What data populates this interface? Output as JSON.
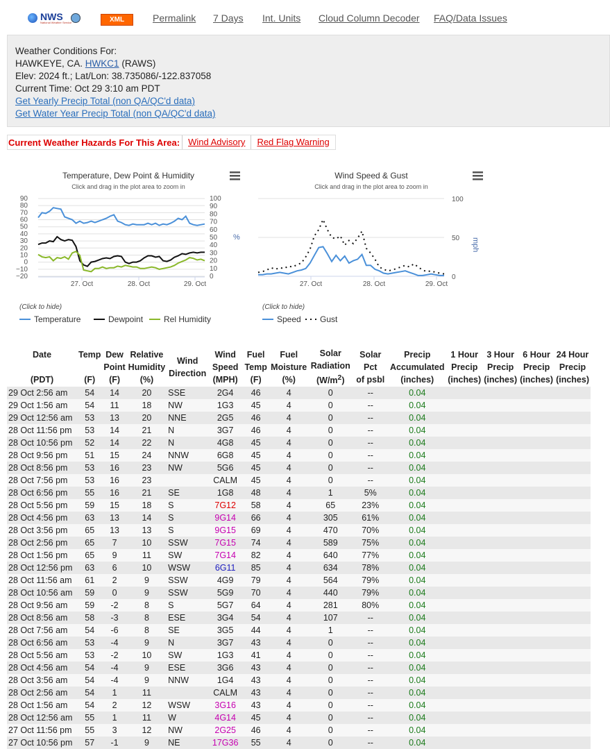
{
  "nav": {
    "logo_text": "NWS",
    "logo_sub": "National Weather Service",
    "xml_label": "XML",
    "links": [
      "Permalink",
      "7 Days",
      "Int. Units",
      "Cloud Column Decoder",
      "FAQ/Data Issues"
    ]
  },
  "station": {
    "heading": "Weather Conditions For:",
    "name_prefix": "HAWKEYE, CA.",
    "id_link": "HWKC1",
    "network": "(RAWS)",
    "elev_line": "Elev: 2024 ft.; Lat/Lon: 38.735086/-122.837058",
    "time_line": "Current Time: Oct 29 3:10 am PDT",
    "yearly_link": "Get Yearly Precip Total (non QA/QC'd data)",
    "water_link": "Get Water Year Precip Total (non QA/QC'd data)"
  },
  "hazards": {
    "label": "Current Weather Hazards For This Area:",
    "items": [
      "Wind Advisory",
      "Red Flag Warning"
    ]
  },
  "chart_data": [
    {
      "type": "line",
      "title": "Temperature, Dew Point & Humidity",
      "subtitle": "Click and drag in the plot area to zoom in",
      "x_ticks": [
        "27. Oct",
        "28. Oct",
        "29. Oct"
      ],
      "y_left_ticks": [
        "90",
        "80",
        "70",
        "60",
        "50",
        "40",
        "30",
        "20",
        "10",
        "0",
        "−10",
        "−20"
      ],
      "y_right_ticks": [
        "100",
        "90",
        "80",
        "70",
        "60",
        "50",
        "40",
        "30",
        "20",
        "10",
        "0"
      ],
      "y_right_label": "%",
      "ylim_left": [
        -20,
        90
      ],
      "ylim_right": [
        0,
        100
      ],
      "legend_note": "(Click to hide)",
      "series": [
        {
          "name": "Temperature",
          "axis": "left",
          "color": "#4a90d9",
          "values": [
            63,
            70,
            69,
            72,
            77,
            76,
            75,
            64,
            62,
            60,
            55,
            58,
            55,
            56,
            58,
            56,
            58,
            60,
            62,
            65,
            67,
            58,
            56,
            53,
            52,
            54,
            53,
            53,
            53,
            55,
            53,
            55,
            52,
            54,
            53,
            55,
            58,
            62,
            60,
            65,
            55,
            53,
            52,
            53,
            54
          ]
        },
        {
          "name": "Dewpoint",
          "axis": "left",
          "color": "#111111",
          "values": [
            25,
            27,
            27,
            30,
            29,
            36,
            32,
            30,
            32,
            31,
            22,
            2,
            -4,
            -6,
            0,
            1,
            3,
            5,
            6,
            5,
            8,
            9,
            8,
            0,
            -2,
            0,
            0,
            2,
            6,
            9,
            9,
            7,
            8,
            2,
            1,
            3,
            7,
            9,
            12,
            11,
            13,
            14,
            13,
            14,
            14
          ]
        },
        {
          "name": "Rel Humidity",
          "axis": "right",
          "color": "#8ab82a",
          "values": [
            28,
            25,
            24,
            25,
            20,
            24,
            23,
            25,
            22,
            30,
            32,
            27,
            8,
            7,
            6,
            10,
            10,
            12,
            10,
            11,
            11,
            13,
            12,
            14,
            13,
            12,
            12,
            10,
            10,
            11,
            12,
            11,
            9,
            10,
            11,
            12,
            14,
            17,
            19,
            21,
            24,
            23,
            21,
            22,
            20
          ]
        }
      ]
    },
    {
      "type": "line",
      "title": "Wind Speed & Gust",
      "subtitle": "Click and drag in the plot area to zoom in",
      "x_ticks": [
        "27. Oct",
        "28. Oct",
        "29. Oct"
      ],
      "y_right_ticks": [
        "100",
        "50",
        "0"
      ],
      "y_right_label": "mph",
      "ylim": [
        0,
        100
      ],
      "legend_note": "(Click to hide)",
      "series": [
        {
          "name": "Speed",
          "color": "#4a90d9",
          "values": [
            2,
            2,
            3,
            3,
            4,
            5,
            4,
            3,
            5,
            7,
            8,
            10,
            17,
            27,
            37,
            38,
            29,
            19,
            27,
            20,
            26,
            17,
            20,
            22,
            28,
            14,
            14,
            9,
            7,
            4,
            3,
            4,
            5,
            6,
            7,
            5,
            3,
            1,
            1,
            2,
            3,
            2,
            1,
            1
          ]
        },
        {
          "name": "Gust",
          "color": "#111111",
          "values": [
            5,
            6,
            8,
            11,
            9,
            11,
            10,
            13,
            12,
            15,
            17,
            25,
            35,
            52,
            60,
            73,
            60,
            50,
            48,
            52,
            40,
            46,
            42,
            49,
            58,
            36,
            30,
            22,
            12,
            9,
            7,
            8,
            10,
            12,
            14,
            12,
            16,
            12,
            8,
            6,
            7,
            5,
            4,
            3
          ]
        }
      ]
    }
  ],
  "table": {
    "headers": [
      [
        "Date",
        "",
        "(PDT)"
      ],
      [
        "Temp",
        "",
        "(F)"
      ],
      [
        "Dew",
        "Point",
        "(F)"
      ],
      [
        "Relative",
        "Humidity",
        "(%)"
      ],
      [
        "Wind",
        "Direction",
        ""
      ],
      [
        "Wind",
        "Speed",
        "(MPH)"
      ],
      [
        "Fuel",
        "Temp",
        "(F)"
      ],
      [
        "Fuel",
        "Moisture",
        "(%)"
      ],
      [
        "Solar",
        "Radiation",
        "(W/m²)"
      ],
      [
        "Solar",
        "Pct",
        "of psbl"
      ],
      [
        "Precip",
        "Accumulated",
        "(inches)"
      ],
      [
        "1 Hour",
        "Precip",
        "(inches)"
      ],
      [
        "3 Hour",
        "Precip",
        "(inches)"
      ],
      [
        "6 Hour",
        "Precip",
        "(inches)"
      ],
      [
        "24 Hour",
        "Precip",
        "(inches)"
      ]
    ],
    "rows": [
      {
        "date": "29 Oct 2:56 am",
        "temp": "54",
        "dew": "14",
        "rh": "20",
        "dir": "SSE",
        "ws": "2",
        "wg": "4",
        "gc": "n",
        "ft": "46",
        "fm": "4",
        "sr": "0",
        "sp": "--",
        "pa": "0.04"
      },
      {
        "date": "29 Oct 1:56 am",
        "temp": "54",
        "dew": "11",
        "rh": "18",
        "dir": "NW",
        "ws": "1",
        "wg": "3",
        "gc": "n",
        "ft": "45",
        "fm": "4",
        "sr": "0",
        "sp": "--",
        "pa": "0.04"
      },
      {
        "date": "29 Oct 12:56 am",
        "temp": "53",
        "dew": "13",
        "rh": "20",
        "dir": "NNE",
        "ws": "2",
        "wg": "5",
        "gc": "n",
        "ft": "46",
        "fm": "4",
        "sr": "0",
        "sp": "--",
        "pa": "0.04"
      },
      {
        "date": "28 Oct 11:56 pm",
        "temp": "53",
        "dew": "14",
        "rh": "21",
        "dir": "N",
        "ws": "3",
        "wg": "7",
        "gc": "n",
        "ft": "46",
        "fm": "4",
        "sr": "0",
        "sp": "--",
        "pa": "0.04"
      },
      {
        "date": "28 Oct 10:56 pm",
        "temp": "52",
        "dew": "14",
        "rh": "22",
        "dir": "N",
        "ws": "4",
        "wg": "8",
        "gc": "n",
        "ft": "45",
        "fm": "4",
        "sr": "0",
        "sp": "--",
        "pa": "0.04"
      },
      {
        "date": "28 Oct 9:56 pm",
        "temp": "51",
        "dew": "15",
        "rh": "24",
        "dir": "NNW",
        "ws": "6",
        "wg": "8",
        "gc": "n",
        "ft": "45",
        "fm": "4",
        "sr": "0",
        "sp": "--",
        "pa": "0.04"
      },
      {
        "date": "28 Oct 8:56 pm",
        "temp": "53",
        "dew": "16",
        "rh": "23",
        "dir": "NW",
        "ws": "5",
        "wg": "6",
        "gc": "n",
        "ft": "45",
        "fm": "4",
        "sr": "0",
        "sp": "--",
        "pa": "0.04"
      },
      {
        "date": "28 Oct 7:56 pm",
        "temp": "53",
        "dew": "16",
        "rh": "23",
        "dir": "",
        "ws": "CALM",
        "wg": "",
        "gc": "n",
        "ft": "45",
        "fm": "4",
        "sr": "0",
        "sp": "--",
        "pa": "0.04"
      },
      {
        "date": "28 Oct 6:56 pm",
        "temp": "55",
        "dew": "16",
        "rh": "21",
        "dir": "SE",
        "ws": "1",
        "wg": "8",
        "gc": "n",
        "ft": "48",
        "fm": "4",
        "sr": "1",
        "sp": "5%",
        "pa": "0.04"
      },
      {
        "date": "28 Oct 5:56 pm",
        "temp": "59",
        "dew": "15",
        "rh": "18",
        "dir": "S",
        "ws": "7",
        "wg": "12",
        "gc": "r",
        "ft": "58",
        "fm": "4",
        "sr": "65",
        "sp": "23%",
        "pa": "0.04"
      },
      {
        "date": "28 Oct 4:56 pm",
        "temp": "63",
        "dew": "13",
        "rh": "14",
        "dir": "S",
        "ws": "9",
        "wg": "14",
        "gc": "m",
        "ft": "66",
        "fm": "4",
        "sr": "305",
        "sp": "61%",
        "pa": "0.04"
      },
      {
        "date": "28 Oct 3:56 pm",
        "temp": "65",
        "dew": "13",
        "rh": "13",
        "dir": "S",
        "ws": "9",
        "wg": "15",
        "gc": "m",
        "ft": "69",
        "fm": "4",
        "sr": "470",
        "sp": "70%",
        "pa": "0.04"
      },
      {
        "date": "28 Oct 2:56 pm",
        "temp": "65",
        "dew": "7",
        "rh": "10",
        "dir": "SSW",
        "ws": "7",
        "wg": "15",
        "gc": "m",
        "ft": "74",
        "fm": "4",
        "sr": "589",
        "sp": "75%",
        "pa": "0.04"
      },
      {
        "date": "28 Oct 1:56 pm",
        "temp": "65",
        "dew": "9",
        "rh": "11",
        "dir": "SW",
        "ws": "7",
        "wg": "14",
        "gc": "m",
        "ft": "82",
        "fm": "4",
        "sr": "640",
        "sp": "77%",
        "pa": "0.04"
      },
      {
        "date": "28 Oct 12:56 pm",
        "temp": "63",
        "dew": "6",
        "rh": "10",
        "dir": "WSW",
        "ws": "6",
        "wg": "11",
        "gc": "b",
        "ft": "85",
        "fm": "4",
        "sr": "634",
        "sp": "78%",
        "pa": "0.04"
      },
      {
        "date": "28 Oct 11:56 am",
        "temp": "61",
        "dew": "2",
        "rh": "9",
        "dir": "SSW",
        "ws": "4",
        "wg": "9",
        "gc": "n",
        "ft": "79",
        "fm": "4",
        "sr": "564",
        "sp": "79%",
        "pa": "0.04"
      },
      {
        "date": "28 Oct 10:56 am",
        "temp": "59",
        "dew": "0",
        "rh": "9",
        "dir": "SSW",
        "ws": "5",
        "wg": "9",
        "gc": "n",
        "ft": "70",
        "fm": "4",
        "sr": "440",
        "sp": "79%",
        "pa": "0.04"
      },
      {
        "date": "28 Oct 9:56 am",
        "temp": "59",
        "dew": "-2",
        "rh": "8",
        "dir": "S",
        "ws": "5",
        "wg": "7",
        "gc": "n",
        "ft": "64",
        "fm": "4",
        "sr": "281",
        "sp": "80%",
        "pa": "0.04"
      },
      {
        "date": "28 Oct 8:56 am",
        "temp": "58",
        "dew": "-3",
        "rh": "8",
        "dir": "ESE",
        "ws": "3",
        "wg": "4",
        "gc": "n",
        "ft": "54",
        "fm": "4",
        "sr": "107",
        "sp": "--",
        "pa": "0.04"
      },
      {
        "date": "28 Oct 7:56 am",
        "temp": "54",
        "dew": "-6",
        "rh": "8",
        "dir": "SE",
        "ws": "3",
        "wg": "5",
        "gc": "n",
        "ft": "44",
        "fm": "4",
        "sr": "1",
        "sp": "--",
        "pa": "0.04"
      },
      {
        "date": "28 Oct 6:56 am",
        "temp": "53",
        "dew": "-4",
        "rh": "9",
        "dir": "N",
        "ws": "3",
        "wg": "7",
        "gc": "n",
        "ft": "43",
        "fm": "4",
        "sr": "0",
        "sp": "--",
        "pa": "0.04"
      },
      {
        "date": "28 Oct 5:56 am",
        "temp": "53",
        "dew": "-2",
        "rh": "10",
        "dir": "SW",
        "ws": "1",
        "wg": "3",
        "gc": "n",
        "ft": "41",
        "fm": "4",
        "sr": "0",
        "sp": "--",
        "pa": "0.04"
      },
      {
        "date": "28 Oct 4:56 am",
        "temp": "54",
        "dew": "-4",
        "rh": "9",
        "dir": "ESE",
        "ws": "3",
        "wg": "6",
        "gc": "n",
        "ft": "43",
        "fm": "4",
        "sr": "0",
        "sp": "--",
        "pa": "0.04"
      },
      {
        "date": "28 Oct 3:56 am",
        "temp": "54",
        "dew": "-4",
        "rh": "9",
        "dir": "NNW",
        "ws": "1",
        "wg": "4",
        "gc": "n",
        "ft": "43",
        "fm": "4",
        "sr": "0",
        "sp": "--",
        "pa": "0.04"
      },
      {
        "date": "28 Oct 2:56 am",
        "temp": "54",
        "dew": "1",
        "rh": "11",
        "dir": "",
        "ws": "CALM",
        "wg": "",
        "gc": "n",
        "ft": "43",
        "fm": "4",
        "sr": "0",
        "sp": "--",
        "pa": "0.04"
      },
      {
        "date": "28 Oct 1:56 am",
        "temp": "54",
        "dew": "2",
        "rh": "12",
        "dir": "WSW",
        "ws": "3",
        "wg": "16",
        "gc": "m",
        "ft": "43",
        "fm": "4",
        "sr": "0",
        "sp": "--",
        "pa": "0.04"
      },
      {
        "date": "28 Oct 12:56 am",
        "temp": "55",
        "dew": "1",
        "rh": "11",
        "dir": "W",
        "ws": "4",
        "wg": "14",
        "gc": "m",
        "ft": "45",
        "fm": "4",
        "sr": "0",
        "sp": "--",
        "pa": "0.04"
      },
      {
        "date": "27 Oct 11:56 pm",
        "temp": "55",
        "dew": "3",
        "rh": "12",
        "dir": "NW",
        "ws": "2",
        "wg": "25",
        "gc": "m",
        "ft": "46",
        "fm": "4",
        "sr": "0",
        "sp": "--",
        "pa": "0.04"
      },
      {
        "date": "27 Oct 10:56 pm",
        "temp": "57",
        "dew": "-1",
        "rh": "9",
        "dir": "NE",
        "ws": "17",
        "wg": "36",
        "gc": "m",
        "ft": "55",
        "fm": "4",
        "sr": "0",
        "sp": "--",
        "pa": "0.04"
      }
    ]
  }
}
